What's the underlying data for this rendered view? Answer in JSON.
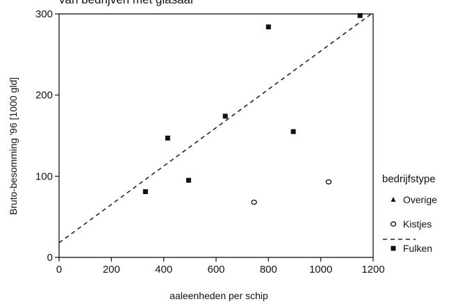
{
  "chart_data": {
    "type": "scatter",
    "title": "van bedrijven met glasaal",
    "xlabel": "aaleenheden per schip",
    "ylabel": "Bruto-besomming '96 [1000 gld]",
    "xlim": [
      0,
      1200
    ],
    "ylim": [
      0,
      300
    ],
    "x_ticks": [
      "0",
      "200",
      "400",
      "600",
      "800",
      "1000",
      "1200"
    ],
    "y_ticks": [
      "0",
      "100",
      "200",
      "300"
    ],
    "grid": false,
    "legend_title": "bedrijfstype",
    "legend_position": "right",
    "series": [
      {
        "name": "Overige",
        "marker": "triangle",
        "points": []
      },
      {
        "name": "Kistjes",
        "marker": "open-circle",
        "points": [
          {
            "x": 745,
            "y": 68
          },
          {
            "x": 1030,
            "y": 93
          }
        ]
      },
      {
        "name": "Fulken",
        "marker": "square",
        "points": [
          {
            "x": 330,
            "y": 81
          },
          {
            "x": 415,
            "y": 147
          },
          {
            "x": 495,
            "y": 95
          },
          {
            "x": 635,
            "y": 174
          },
          {
            "x": 800,
            "y": 284
          },
          {
            "x": 895,
            "y": 155
          },
          {
            "x": 1150,
            "y": 298
          }
        ]
      }
    ],
    "trendline": {
      "style": "dashed",
      "x": [
        0,
        1200
      ],
      "y": [
        18,
        305
      ]
    }
  }
}
